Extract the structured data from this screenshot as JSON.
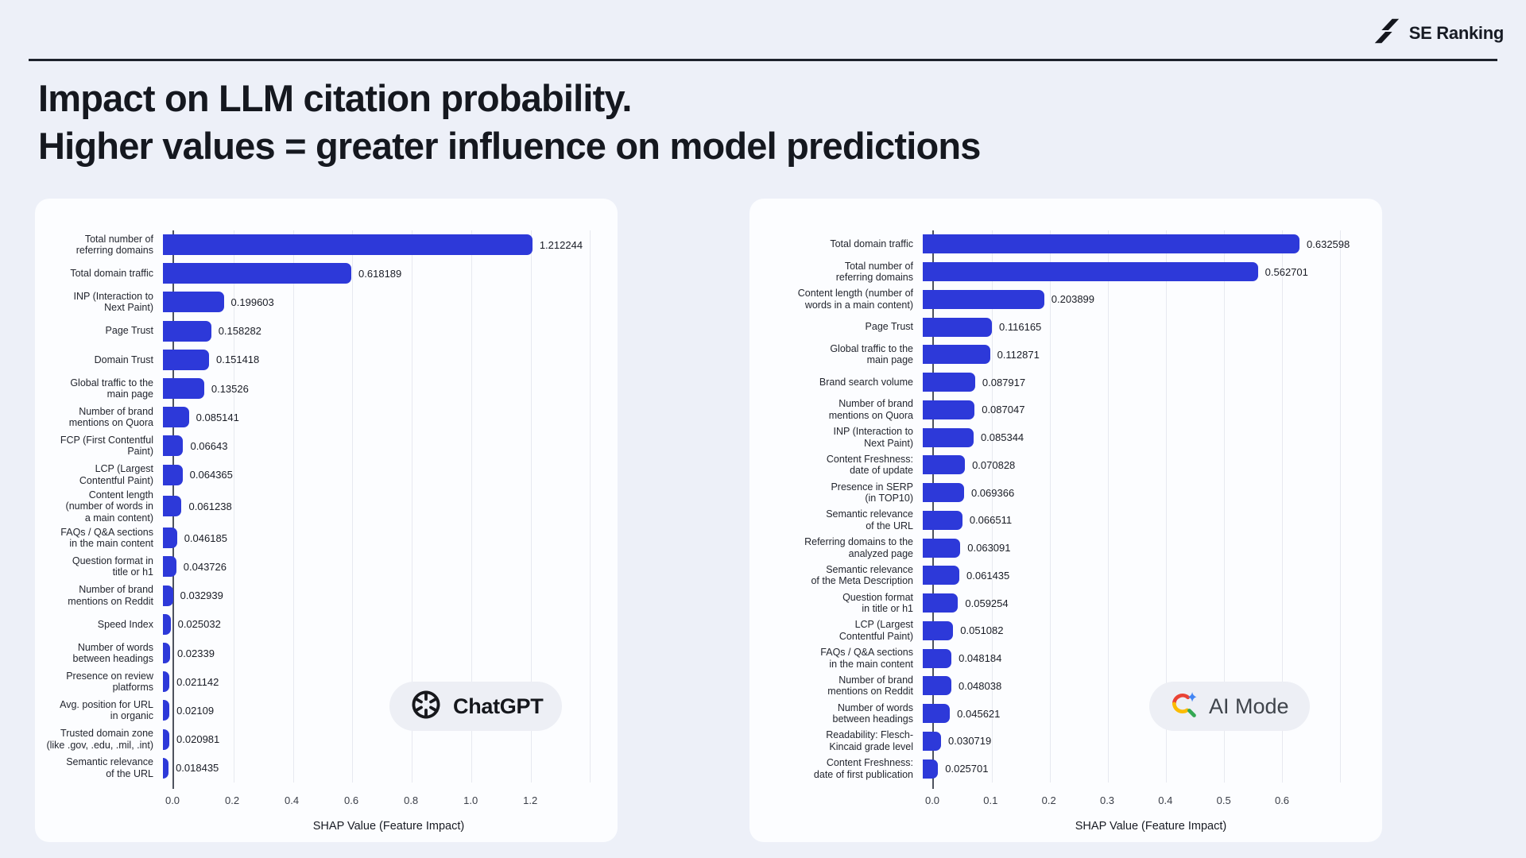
{
  "header": {
    "brand": "SE Ranking"
  },
  "title": {
    "line1": "Impact on LLM citation probability.",
    "line2": "Higher values = greater influence on model predictions"
  },
  "chart_data": [
    {
      "type": "bar",
      "orientation": "horizontal",
      "model": "ChatGPT",
      "badge_label": "ChatGPT",
      "badge_icon": "openai-logo",
      "xlabel": "SHAP Value (Feature Impact)",
      "xticks": [
        "0.0",
        "0.2",
        "0.4",
        "0.6",
        "0.8",
        "1.0",
        "1.2"
      ],
      "grid_step": 0.2,
      "grid_max": 1.4,
      "axis_max": 1.45,
      "bar_color": "#2d39d9",
      "categories": [
        "Total number of referring domains",
        "Total domain traffic",
        "INP (Interaction to Next Paint)",
        "Page Trust",
        "Domain Trust",
        "Global traffic to the main page",
        "Number of brand mentions on Quora",
        "FCP (First Contentful Paint)",
        "LCP (Largest Contentful Paint)",
        "Content length (number of words in a main content)",
        "FAQs / Q&A sections in the main content",
        "Question format in title or h1",
        "Number of brand mentions on Reddit",
        "Speed Index",
        "Number of words between headings",
        "Presence on review platforms",
        "Avg. position for URL in organic",
        "Trusted domain zone (like .gov, .edu, .mil, .int)",
        "Semantic relevance of the URL"
      ],
      "label_lines": [
        [
          "Total number of",
          "referring domains"
        ],
        [
          "Total domain traffic"
        ],
        [
          "INP (Interaction to",
          "Next Paint)"
        ],
        [
          "Page Trust"
        ],
        [
          "Domain Trust"
        ],
        [
          "Global traffic to the",
          "main page"
        ],
        [
          "Number of brand",
          "mentions on Quora"
        ],
        [
          "FCP (First Contentful",
          "Paint)"
        ],
        [
          "LCP (Largest",
          "Contentful Paint)"
        ],
        [
          "Content length",
          "(number of words in",
          "a main content)"
        ],
        [
          "FAQs / Q&A sections",
          "in the main content"
        ],
        [
          "Question format in",
          "title or h1"
        ],
        [
          "Number of brand",
          "mentions on Reddit"
        ],
        [
          "Speed Index"
        ],
        [
          "Number of words",
          "between headings"
        ],
        [
          "Presence on review",
          "platforms"
        ],
        [
          "Avg. position for URL",
          "in organic"
        ],
        [
          "Trusted domain zone",
          "(like .gov, .edu, .mil, .int)"
        ],
        [
          "Semantic relevance",
          "of the URL"
        ]
      ],
      "values": [
        1.212244,
        0.618189,
        0.199603,
        0.158282,
        0.151418,
        0.13526,
        0.085141,
        0.06643,
        0.064365,
        0.061238,
        0.046185,
        0.043726,
        0.032939,
        0.025032,
        0.02339,
        0.021142,
        0.02109,
        0.020981,
        0.018435
      ],
      "value_labels": [
        "1.212244",
        "0.618189",
        "0.199603",
        "0.158282",
        "0.151418",
        "0.13526",
        "0.085141",
        "0.06643",
        "0.064365",
        "0.061238",
        "0.046185",
        "0.043726",
        "0.032939",
        "0.025032",
        "0.02339",
        "0.021142",
        "0.02109",
        "0.020981",
        "0.018435"
      ]
    },
    {
      "type": "bar",
      "orientation": "horizontal",
      "model": "AI Mode",
      "badge_label": "AI Mode",
      "badge_icon": "google-ai-mode-logo",
      "xlabel": "SHAP Value (Feature Impact)",
      "xticks": [
        "0.0",
        "0.1",
        "0.2",
        "0.3",
        "0.4",
        "0.5",
        "0.6"
      ],
      "grid_step": 0.1,
      "grid_max": 0.7,
      "axis_max": 0.75,
      "bar_color": "#2d39d9",
      "categories": [
        "Total domain traffic",
        "Total number of referring domains",
        "Content length (number of words in a main content)",
        "Page Trust",
        "Global traffic to the main page",
        "Brand search volume",
        "Number of brand mentions on Quora",
        "INP (Interaction to Next Paint)",
        "Content Freshness: date of update",
        "Presence in SERP (in TOP10)",
        "Semantic relevance of the URL",
        "Referring domains to the analyzed page",
        "Semantic relevance of the Meta Description",
        "Question format in title or h1",
        "LCP (Largest Contentful Paint)",
        "FAQs / Q&A sections in the main content",
        "Number of brand mentions on Reddit",
        "Number of words between headings",
        "Readability: Flesch-Kincaid grade level",
        "Content Freshness: date of first publication"
      ],
      "label_lines": [
        [
          "Total domain traffic"
        ],
        [
          "Total number of",
          "referring domains"
        ],
        [
          "Content length (number of",
          "words in a main content)"
        ],
        [
          "Page Trust"
        ],
        [
          "Global traffic to the",
          "main page"
        ],
        [
          "Brand search volume"
        ],
        [
          "Number of brand",
          "mentions on Quora"
        ],
        [
          "INP (Interaction to",
          "Next Paint)"
        ],
        [
          "Content Freshness:",
          "date of update"
        ],
        [
          "Presence in SERP",
          "(in TOP10)"
        ],
        [
          "Semantic relevance",
          "of the URL"
        ],
        [
          "Referring domains to the",
          "analyzed page"
        ],
        [
          "Semantic relevance",
          "of the Meta Description"
        ],
        [
          "Question format",
          "in title or h1"
        ],
        [
          "LCP (Largest",
          "Contentful Paint)"
        ],
        [
          "FAQs / Q&A sections",
          "in the main content"
        ],
        [
          "Number of brand",
          "mentions on Reddit"
        ],
        [
          "Number of words",
          "between headings"
        ],
        [
          "Readability: Flesch-",
          "Kincaid grade level"
        ],
        [
          "Content Freshness:",
          "date of first publication"
        ]
      ],
      "values": [
        0.632598,
        0.562701,
        0.203899,
        0.116165,
        0.112871,
        0.087917,
        0.087047,
        0.085344,
        0.070828,
        0.069366,
        0.066511,
        0.063091,
        0.061435,
        0.059254,
        0.051082,
        0.048184,
        0.048038,
        0.045621,
        0.030719,
        0.025701
      ],
      "value_labels": [
        "0.632598",
        "0.562701",
        "0.203899",
        "0.116165",
        "0.112871",
        "0.087917",
        "0.087047",
        "0.085344",
        "0.070828",
        "0.069366",
        "0.066511",
        "0.063091",
        "0.061435",
        "0.059254",
        "0.051082",
        "0.048184",
        "0.048038",
        "0.045621",
        "0.030719",
        "0.025701"
      ]
    }
  ]
}
